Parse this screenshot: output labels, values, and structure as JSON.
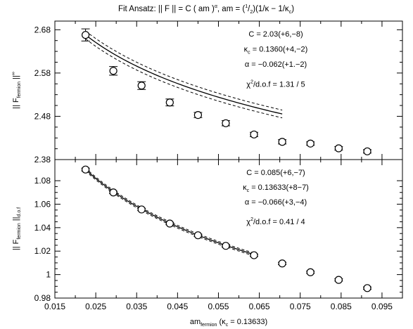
{
  "title": {
    "prefix": "Fit Ansatz:  || F || = C ( am )",
    "exp": "α",
    "mid": ", am = (",
    "frac_num": "1",
    "frac_sep": "/",
    "frac_den": "2",
    "suffix": ")(1/κ − 1/κ",
    "suffix_sub": "c",
    "close": ")"
  },
  "chart_data": [
    {
      "type": "scatter",
      "panel": "top",
      "ylabel": {
        "main": "|| F",
        "sub": "fermion",
        "tail": " ||",
        "sup": "∞"
      },
      "ylim": [
        2.38,
        2.7
      ],
      "yticks": [
        2.38,
        2.48,
        2.58,
        2.68
      ],
      "ytick_labels": [
        "2.38",
        "2.48",
        "2.58",
        "2.68"
      ],
      "xlim": [
        0.015,
        0.1
      ],
      "series": [
        {
          "x": [
            0.0225,
            0.0293,
            0.0362,
            0.0431,
            0.05,
            0.0568,
            0.0637,
            0.0706,
            0.0775,
            0.0844,
            0.0914
          ],
          "y": [
            2.668,
            2.585,
            2.551,
            2.512,
            2.483,
            2.464,
            2.438,
            2.421,
            2.417,
            2.406,
            2.399
          ],
          "err": [
            0.014,
            0.01,
            0.009,
            0.008,
            0.006,
            0.006,
            0.005,
            0.005,
            0.004,
            0.004,
            0.004
          ]
        }
      ],
      "fit": {
        "C": 2.03,
        "kappa_c": 0.136,
        "alpha": -0.062,
        "x_range": [
          0.0225,
          0.0706
        ],
        "y_at_start": 2.668,
        "band": 0.009,
        "annotations": [
          {
            "main": "C = 2.03(+6,−8)"
          },
          {
            "main": "κ",
            "sub": "c",
            "tail": " = 0.1360(+4,−2)"
          },
          {
            "main": "α = −0.062(+1.−2)"
          },
          {
            "main": "χ",
            "sup": "2",
            "tail": "/d.o.f = 1.31 / 5"
          }
        ]
      }
    },
    {
      "type": "scatter",
      "panel": "bottom",
      "ylabel": {
        "main": "|| F",
        "sub": "fermion",
        "tail": " ||",
        "sub2": "d.o.f"
      },
      "ylim": [
        0.98,
        1.098
      ],
      "yticks": [
        0.98,
        1.0,
        1.02,
        1.04,
        1.06,
        1.08
      ],
      "ytick_labels": [
        "0.98",
        "1",
        "1.02",
        "1.04",
        "1.06",
        "1.08"
      ],
      "xlim": [
        0.015,
        0.1
      ],
      "xticks": [
        0.015,
        0.025,
        0.035,
        0.045,
        0.055,
        0.065,
        0.075,
        0.085,
        0.095
      ],
      "xtick_labels": [
        "0.015",
        "0.025",
        "0.035",
        "0.045",
        "0.055",
        "0.065",
        "0.075",
        "0.085",
        "0.095"
      ],
      "xlabel": {
        "main": "am",
        "sub": "fermion",
        "tail": " (κ",
        "sub2": "c",
        "tail2": " = 0.13633)"
      },
      "series": [
        {
          "x": [
            0.0225,
            0.0293,
            0.0362,
            0.0431,
            0.05,
            0.0568,
            0.0637,
            0.0706,
            0.0775,
            0.0844,
            0.0914
          ],
          "y": [
            1.0895,
            1.07,
            1.0555,
            1.0435,
            1.0335,
            1.0245,
            1.0165,
            1.0095,
            1.002,
            0.9955,
            0.9885
          ],
          "err": [
            0.0012,
            0.001,
            0.001,
            0.001,
            0.001,
            0.001,
            0.001,
            0.001,
            0.001,
            0.001,
            0.001
          ]
        }
      ],
      "fit": {
        "C": 0.085,
        "kappa_c": 0.13633,
        "alpha": -0.066,
        "x_range": [
          0.0225,
          0.0637
        ],
        "y_at_start": 1.0895,
        "band": 0.0012,
        "annotations": [
          {
            "main": "C = 0.085(+6,−7)"
          },
          {
            "main": "κ",
            "sub": "c",
            "tail": " = 0.13633(+8−7)"
          },
          {
            "main": "α = −0.066(+3,−4)"
          },
          {
            "main": "χ",
            "sup": "2",
            "tail": "/d.o.f = 0.41 / 4"
          }
        ]
      }
    }
  ]
}
